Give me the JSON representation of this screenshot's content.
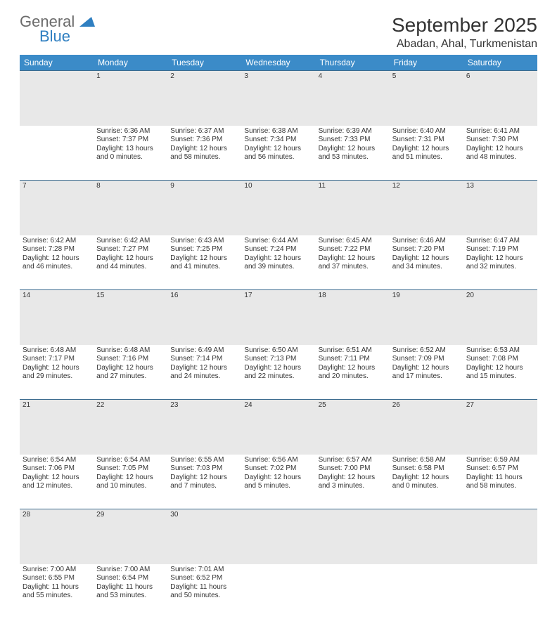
{
  "logo": {
    "line1": "General",
    "line2": "Blue"
  },
  "title": "September 2025",
  "location": "Abadan, Ahal, Turkmenistan",
  "colors": {
    "header_bg": "#3b8bc8",
    "header_text": "#ffffff",
    "daynum_bg": "#e8e8e8",
    "daynum_text": "#555555",
    "row_border": "#3b6b8f",
    "body_text": "#333333",
    "logo_gray": "#6b6b6b",
    "logo_blue": "#2f7fc1",
    "background": "#ffffff"
  },
  "fonts": {
    "title_pt": 28,
    "location_pt": 16,
    "weekday_pt": 12,
    "daynum_pt": 12,
    "cell_pt": 10,
    "family": "Arial"
  },
  "weekdays": [
    "Sunday",
    "Monday",
    "Tuesday",
    "Wednesday",
    "Thursday",
    "Friday",
    "Saturday"
  ],
  "weeks": [
    {
      "nums": [
        "",
        "1",
        "2",
        "3",
        "4",
        "5",
        "6"
      ],
      "cells": [
        {
          "lines": []
        },
        {
          "lines": [
            "Sunrise: 6:36 AM",
            "Sunset: 7:37 PM",
            "Daylight: 13 hours",
            "and 0 minutes."
          ]
        },
        {
          "lines": [
            "Sunrise: 6:37 AM",
            "Sunset: 7:36 PM",
            "Daylight: 12 hours",
            "and 58 minutes."
          ]
        },
        {
          "lines": [
            "Sunrise: 6:38 AM",
            "Sunset: 7:34 PM",
            "Daylight: 12 hours",
            "and 56 minutes."
          ]
        },
        {
          "lines": [
            "Sunrise: 6:39 AM",
            "Sunset: 7:33 PM",
            "Daylight: 12 hours",
            "and 53 minutes."
          ]
        },
        {
          "lines": [
            "Sunrise: 6:40 AM",
            "Sunset: 7:31 PM",
            "Daylight: 12 hours",
            "and 51 minutes."
          ]
        },
        {
          "lines": [
            "Sunrise: 6:41 AM",
            "Sunset: 7:30 PM",
            "Daylight: 12 hours",
            "and 48 minutes."
          ]
        }
      ]
    },
    {
      "nums": [
        "7",
        "8",
        "9",
        "10",
        "11",
        "12",
        "13"
      ],
      "cells": [
        {
          "lines": [
            "Sunrise: 6:42 AM",
            "Sunset: 7:28 PM",
            "Daylight: 12 hours",
            "and 46 minutes."
          ]
        },
        {
          "lines": [
            "Sunrise: 6:42 AM",
            "Sunset: 7:27 PM",
            "Daylight: 12 hours",
            "and 44 minutes."
          ]
        },
        {
          "lines": [
            "Sunrise: 6:43 AM",
            "Sunset: 7:25 PM",
            "Daylight: 12 hours",
            "and 41 minutes."
          ]
        },
        {
          "lines": [
            "Sunrise: 6:44 AM",
            "Sunset: 7:24 PM",
            "Daylight: 12 hours",
            "and 39 minutes."
          ]
        },
        {
          "lines": [
            "Sunrise: 6:45 AM",
            "Sunset: 7:22 PM",
            "Daylight: 12 hours",
            "and 37 minutes."
          ]
        },
        {
          "lines": [
            "Sunrise: 6:46 AM",
            "Sunset: 7:20 PM",
            "Daylight: 12 hours",
            "and 34 minutes."
          ]
        },
        {
          "lines": [
            "Sunrise: 6:47 AM",
            "Sunset: 7:19 PM",
            "Daylight: 12 hours",
            "and 32 minutes."
          ]
        }
      ]
    },
    {
      "nums": [
        "14",
        "15",
        "16",
        "17",
        "18",
        "19",
        "20"
      ],
      "cells": [
        {
          "lines": [
            "Sunrise: 6:48 AM",
            "Sunset: 7:17 PM",
            "Daylight: 12 hours",
            "and 29 minutes."
          ]
        },
        {
          "lines": [
            "Sunrise: 6:48 AM",
            "Sunset: 7:16 PM",
            "Daylight: 12 hours",
            "and 27 minutes."
          ]
        },
        {
          "lines": [
            "Sunrise: 6:49 AM",
            "Sunset: 7:14 PM",
            "Daylight: 12 hours",
            "and 24 minutes."
          ]
        },
        {
          "lines": [
            "Sunrise: 6:50 AM",
            "Sunset: 7:13 PM",
            "Daylight: 12 hours",
            "and 22 minutes."
          ]
        },
        {
          "lines": [
            "Sunrise: 6:51 AM",
            "Sunset: 7:11 PM",
            "Daylight: 12 hours",
            "and 20 minutes."
          ]
        },
        {
          "lines": [
            "Sunrise: 6:52 AM",
            "Sunset: 7:09 PM",
            "Daylight: 12 hours",
            "and 17 minutes."
          ]
        },
        {
          "lines": [
            "Sunrise: 6:53 AM",
            "Sunset: 7:08 PM",
            "Daylight: 12 hours",
            "and 15 minutes."
          ]
        }
      ]
    },
    {
      "nums": [
        "21",
        "22",
        "23",
        "24",
        "25",
        "26",
        "27"
      ],
      "cells": [
        {
          "lines": [
            "Sunrise: 6:54 AM",
            "Sunset: 7:06 PM",
            "Daylight: 12 hours",
            "and 12 minutes."
          ]
        },
        {
          "lines": [
            "Sunrise: 6:54 AM",
            "Sunset: 7:05 PM",
            "Daylight: 12 hours",
            "and 10 minutes."
          ]
        },
        {
          "lines": [
            "Sunrise: 6:55 AM",
            "Sunset: 7:03 PM",
            "Daylight: 12 hours",
            "and 7 minutes."
          ]
        },
        {
          "lines": [
            "Sunrise: 6:56 AM",
            "Sunset: 7:02 PM",
            "Daylight: 12 hours",
            "and 5 minutes."
          ]
        },
        {
          "lines": [
            "Sunrise: 6:57 AM",
            "Sunset: 7:00 PM",
            "Daylight: 12 hours",
            "and 3 minutes."
          ]
        },
        {
          "lines": [
            "Sunrise: 6:58 AM",
            "Sunset: 6:58 PM",
            "Daylight: 12 hours",
            "and 0 minutes."
          ]
        },
        {
          "lines": [
            "Sunrise: 6:59 AM",
            "Sunset: 6:57 PM",
            "Daylight: 11 hours",
            "and 58 minutes."
          ]
        }
      ]
    },
    {
      "nums": [
        "28",
        "29",
        "30",
        "",
        "",
        "",
        ""
      ],
      "cells": [
        {
          "lines": [
            "Sunrise: 7:00 AM",
            "Sunset: 6:55 PM",
            "Daylight: 11 hours",
            "and 55 minutes."
          ]
        },
        {
          "lines": [
            "Sunrise: 7:00 AM",
            "Sunset: 6:54 PM",
            "Daylight: 11 hours",
            "and 53 minutes."
          ]
        },
        {
          "lines": [
            "Sunrise: 7:01 AM",
            "Sunset: 6:52 PM",
            "Daylight: 11 hours",
            "and 50 minutes."
          ]
        },
        {
          "lines": []
        },
        {
          "lines": []
        },
        {
          "lines": []
        },
        {
          "lines": []
        }
      ]
    }
  ]
}
